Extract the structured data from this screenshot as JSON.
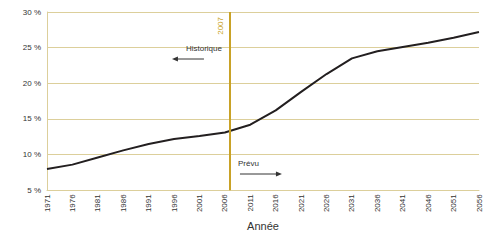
{
  "chart_data": {
    "type": "line",
    "x": [
      1971,
      1976,
      1981,
      1986,
      1991,
      1996,
      2001,
      2006,
      2011,
      2016,
      2021,
      2026,
      2031,
      2036,
      2041,
      2046,
      2051,
      2056
    ],
    "values": [
      8.0,
      8.6,
      9.6,
      10.6,
      11.5,
      12.2,
      12.6,
      13.1,
      14.2,
      16.2,
      18.8,
      21.3,
      23.5,
      24.5,
      25.1,
      25.7,
      26.4,
      27.2
    ],
    "color": "#231f20",
    "x_label": "Année",
    "xlim": [
      1971,
      2056
    ],
    "xticks": [
      1971,
      1976,
      1981,
      1986,
      1991,
      1996,
      2001,
      2006,
      2011,
      2016,
      2021,
      2026,
      2031,
      2036,
      2041,
      2046,
      2051,
      2056
    ],
    "ylim": [
      5,
      30
    ],
    "yticks": [
      {
        "value": 5,
        "label": "5 %"
      },
      {
        "value": 10,
        "label": "10 %"
      },
      {
        "value": 15,
        "label": "15 %"
      },
      {
        "value": 20,
        "label": "20 %"
      },
      {
        "value": 25,
        "label": "25 %"
      },
      {
        "value": 30,
        "label": "30 %"
      }
    ],
    "reference_line": {
      "x": 2007
    },
    "annotations": [
      {
        "text": "Historique",
        "direction": "left"
      },
      {
        "text": "Prévu",
        "direction": "right"
      }
    ],
    "grid": true,
    "marker": "none"
  }
}
